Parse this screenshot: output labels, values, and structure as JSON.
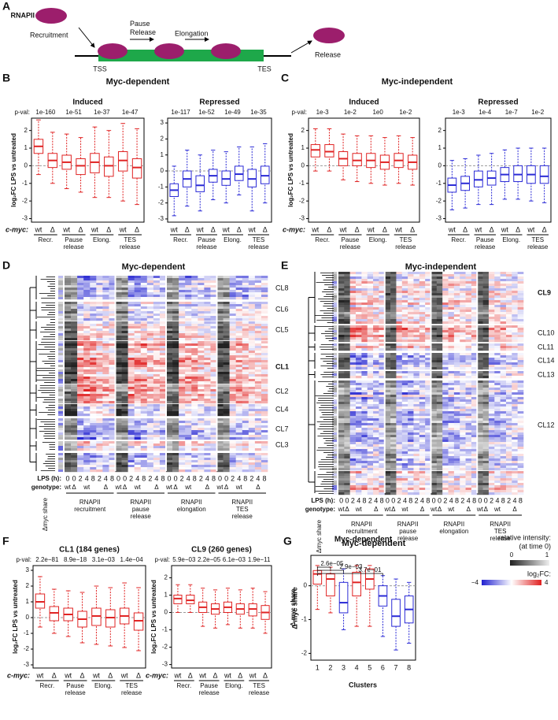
{
  "A": {
    "letter": "A",
    "rnapii": "RNAPII",
    "recruitment": "Recruitment",
    "pause": "Pause Release",
    "elongation": "Elongation",
    "release": "Release",
    "tss": "TSS",
    "tes": "TES"
  },
  "B": {
    "letter": "B",
    "title": "Myc-dependent",
    "plots": [
      {
        "title": "Induced",
        "pval_label": "p-val:",
        "ylabel": "log₂FC LPS vs untreated",
        "cmyc_label": "c-myc:",
        "pvals": [
          "1e-160",
          "1e-51",
          "1e-37",
          "1e-47"
        ],
        "yticks": [
          2,
          1,
          0,
          -1,
          -2,
          -3
        ],
        "ylim": [
          -3.2,
          2.7
        ],
        "color": "#e02424",
        "boxes": [
          [
            -0.5,
            0.7,
            1.1,
            1.5,
            2.6
          ],
          [
            -1,
            -0.1,
            0.3,
            0.7,
            1.9
          ],
          [
            -1.3,
            -0.2,
            0.2,
            0.6,
            1.8
          ],
          [
            -1.5,
            -0.5,
            0,
            0.4,
            1.6
          ],
          [
            -1.8,
            -0.4,
            0.2,
            0.7,
            2.2
          ],
          [
            -1.8,
            -0.6,
            0,
            0.5,
            2
          ],
          [
            -2,
            -0.3,
            0.3,
            0.8,
            2.4
          ],
          [
            -2.2,
            -0.7,
            -0.1,
            0.4,
            2.1
          ]
        ],
        "genotypes": [
          "wt",
          "Δ",
          "wt",
          "Δ",
          "wt",
          "Δ",
          "wt",
          "Δ"
        ],
        "groups": [
          "Recr.",
          "Pause release",
          "Elong.",
          "TES release"
        ]
      },
      {
        "title": "Repressed",
        "pvals": [
          "1e-117",
          "1e-52",
          "1e-49",
          "1e-35"
        ],
        "yticks": [
          3,
          2,
          1,
          0,
          -1,
          -2,
          -3
        ],
        "ylim": [
          -3.2,
          3.3
        ],
        "color": "#2a2ad6",
        "boxes": [
          [
            -2.8,
            -1.6,
            -1.2,
            -0.8,
            0.3
          ],
          [
            -2.2,
            -1,
            -0.5,
            0,
            1.3
          ],
          [
            -2.5,
            -1.3,
            -0.9,
            -0.3,
            1
          ],
          [
            -1.8,
            -0.7,
            -0.3,
            0.1,
            1.3
          ],
          [
            -2,
            -0.9,
            -0.5,
            0,
            1.2
          ],
          [
            -1.5,
            -0.6,
            -0.2,
            0.3,
            1.5
          ],
          [
            -2.5,
            -1,
            -0.5,
            0.1,
            1.5
          ],
          [
            -2,
            -0.8,
            -0.3,
            0.3,
            1.7
          ]
        ],
        "genotypes": [
          "wt",
          "Δ",
          "wt",
          "Δ",
          "wt",
          "Δ",
          "wt",
          "Δ"
        ],
        "groups": [
          "Recr.",
          "Pause release",
          "Elong.",
          "TES release"
        ]
      }
    ]
  },
  "C": {
    "letter": "C",
    "title": "Myc-independent",
    "plots": [
      {
        "title": "Induced",
        "pval_label": "p-val:",
        "ylabel": "log₂FC LPS vs untreated",
        "cmyc_label": "c-myc:",
        "pvals": [
          "1e-3",
          "1e-2",
          "1e0",
          "1e-2"
        ],
        "yticks": [
          2,
          1,
          0,
          -1,
          -2,
          -3
        ],
        "ylim": [
          -3.2,
          2.7
        ],
        "color": "#e02424",
        "boxes": [
          [
            -0.3,
            0.5,
            0.9,
            1.2,
            2.1
          ],
          [
            -0.3,
            0.5,
            0.8,
            1.2,
            2.1
          ],
          [
            -0.8,
            0,
            0.4,
            0.8,
            1.8
          ],
          [
            -0.9,
            0,
            0.3,
            0.7,
            1.7
          ],
          [
            -1,
            -0.1,
            0.3,
            0.7,
            1.7
          ],
          [
            -1.1,
            -0.2,
            0.2,
            0.6,
            1.6
          ],
          [
            -1,
            -0.1,
            0.3,
            0.7,
            1.7
          ],
          [
            -1.1,
            -0.2,
            0.2,
            0.6,
            1.6
          ]
        ],
        "genotypes": [
          "wt",
          "Δ",
          "wt",
          "Δ",
          "wt",
          "Δ",
          "wt",
          "Δ"
        ],
        "groups": [
          "Recr.",
          "Pause release",
          "Elong.",
          "TES release"
        ]
      },
      {
        "title": "Repressed",
        "pvals": [
          "1e-3",
          "1e-4",
          "1e-7",
          "1e-2"
        ],
        "yticks": [
          2,
          1,
          0,
          -1,
          -2,
          -3
        ],
        "ylim": [
          -3.2,
          2.7
        ],
        "color": "#2a2ad6",
        "boxes": [
          [
            -2.5,
            -1.5,
            -1.1,
            -0.7,
            0.3
          ],
          [
            -2.4,
            -1.4,
            -1,
            -0.6,
            0.4
          ],
          [
            -2.2,
            -1.2,
            -0.8,
            -0.3,
            0.6
          ],
          [
            -2.2,
            -1.1,
            -0.7,
            -0.3,
            0.7
          ],
          [
            -1.9,
            -0.9,
            -0.5,
            -0.1,
            0.9
          ],
          [
            -1.9,
            -0.9,
            -0.5,
            0,
            1
          ],
          [
            -2,
            -1,
            -0.5,
            0,
            1
          ],
          [
            -2.1,
            -1,
            -0.6,
            0,
            1
          ]
        ],
        "genotypes": [
          "wt",
          "Δ",
          "wt",
          "Δ",
          "wt",
          "Δ",
          "wt",
          "Δ"
        ],
        "groups": [
          "Recr.",
          "Pause release",
          "Elong.",
          "TES release"
        ]
      }
    ]
  },
  "D": {
    "letter": "D",
    "title": "Myc-dependent",
    "clusters": [
      "CL8",
      "CL6",
      "CL5",
      "CL1",
      "CL2",
      "CL4",
      "CL7",
      "CL3"
    ],
    "lps_label": "LPS (h):",
    "lps": [
      "0",
      "0",
      "2",
      "4",
      "8",
      "2",
      "4",
      "8"
    ],
    "genotype_label": "genotype:",
    "genotype": [
      "wt",
      "Δ",
      "wt",
      "Δ"
    ],
    "share_label": "Δmyc share",
    "groups": [
      "RNAPII recruitment",
      "RNAPII pause release",
      "RNAPII elongation",
      "RNAPII TES release"
    ]
  },
  "E": {
    "letter": "E",
    "title": "Myc-independent",
    "clusters": [
      "CL9",
      "CL10",
      "CL11",
      "CL14",
      "CL13",
      "CL12"
    ],
    "lps_label": "LPS (h):",
    "lps": [
      "0",
      "0",
      "2",
      "4",
      "8",
      "2",
      "4",
      "8"
    ],
    "genotype_label": "genotype:",
    "genotype": [
      "wt",
      "Δ",
      "wt",
      "Δ"
    ],
    "share_label": "Δmyc share",
    "groups": [
      "RNAPII recruitment",
      "RNAPII pause release",
      "RNAPII elongation",
      "RNAPII TES release"
    ]
  },
  "legend": {
    "title": "relative intensity:",
    "subtitle": "(at time 0)",
    "gray_ticks": [
      "0",
      "1"
    ],
    "fc_label": "log₂FC:",
    "fc_ticks": [
      "−4",
      "4"
    ]
  },
  "F": {
    "letter": "F",
    "plots": [
      {
        "title": "CL1 (184 genes)",
        "pval_label": "p-val:",
        "ylabel": "log₂FC LPS vs untreated",
        "cmyc_label": "c-myc:",
        "pvals": [
          "2.2e−81",
          "8.9e−18",
          "3.1e−03",
          "1.4e−04"
        ],
        "yticks": [
          3,
          2,
          1,
          0,
          -1,
          -2,
          -3
        ],
        "ylim": [
          -3.2,
          3.3
        ],
        "color": "#e02424",
        "boxes": [
          [
            -0.6,
            0.6,
            1,
            1.5,
            2.6
          ],
          [
            -1,
            -0.2,
            0.3,
            0.7,
            1.8
          ],
          [
            -1.2,
            -0.2,
            0.2,
            0.6,
            1.7
          ],
          [
            -1.6,
            -0.6,
            -0.1,
            0.4,
            1.6
          ],
          [
            -1.7,
            -0.5,
            0.1,
            0.6,
            2
          ],
          [
            -1.8,
            -0.6,
            0,
            0.5,
            1.9
          ],
          [
            -1.9,
            -0.4,
            0.1,
            0.6,
            2.2
          ],
          [
            -2.1,
            -0.8,
            -0.2,
            0.3,
            1.9
          ]
        ],
        "genotypes": [
          "wt",
          "Δ",
          "wt",
          "Δ",
          "wt",
          "Δ",
          "wt",
          "Δ"
        ],
        "groups": [
          "Recr.",
          "Pause release",
          "Elong.",
          "TES release"
        ]
      },
      {
        "title": "CL9 (260 genes)",
        "pval_label": "p-val:",
        "ylabel": "log₂FC LPS vs untreated",
        "cmyc_label": "c-myc:",
        "pvals": [
          "5.9e−03",
          "2.2e−05",
          "6.1e−03",
          "1.9e−11"
        ],
        "yticks": [
          2,
          1,
          0,
          -1,
          -2,
          -3
        ],
        "ylim": [
          -3.2,
          2.7
        ],
        "color": "#e02424",
        "boxes": [
          [
            0,
            0.5,
            0.8,
            1,
            1.6
          ],
          [
            0,
            0.5,
            0.7,
            1,
            1.6
          ],
          [
            -0.8,
            0,
            0.3,
            0.6,
            1.4
          ],
          [
            -0.9,
            -0.1,
            0.2,
            0.5,
            1.3
          ],
          [
            -0.7,
            0,
            0.3,
            0.6,
            1.4
          ],
          [
            -0.9,
            -0.1,
            0.2,
            0.5,
            1.3
          ],
          [
            -0.9,
            -0.2,
            0.2,
            0.5,
            1.4
          ],
          [
            -1.2,
            -0.4,
            0,
            0.4,
            1.2
          ]
        ],
        "genotypes": [
          "wt",
          "Δ",
          "wt",
          "Δ",
          "wt",
          "Δ",
          "wt",
          "Δ"
        ],
        "groups": [
          "Recr.",
          "Pause release",
          "Elong.",
          "TES release"
        ]
      }
    ]
  },
  "G": {
    "letter": "G",
    "title": "Myc-dependent",
    "ylabel": "Δ myc share",
    "xlabel": "Clusters",
    "categories": [
      "1",
      "2",
      "3",
      "4",
      "5",
      "6",
      "7",
      "8"
    ],
    "colors": [
      "#e02424",
      "#e02424",
      "#2a2ad6",
      "#e02424",
      "#e02424",
      "#2a2ad6",
      "#2a2ad6",
      "#2a2ad6"
    ],
    "boxes": [
      [
        -0.7,
        0.05,
        0.35,
        0.45,
        0.6
      ],
      [
        -0.8,
        -0.3,
        0.2,
        0.35,
        0.55
      ],
      [
        -1.3,
        -0.8,
        -0.5,
        0.1,
        0.5
      ],
      [
        -1.2,
        -0.3,
        0.1,
        0.4,
        0.6
      ],
      [
        -1.2,
        -0.1,
        0.2,
        0.5,
        0.6
      ],
      [
        -1.5,
        -0.6,
        -0.3,
        0,
        0.3
      ],
      [
        -1.9,
        -1.2,
        -0.9,
        -0.4,
        0.2
      ],
      [
        -1.7,
        -1.1,
        -0.7,
        -0.3,
        0.1
      ]
    ],
    "pvals": [
      "2.6e−05",
      "2.9e−03",
      "3.7e−01"
    ],
    "yticks": [
      0,
      -1,
      -2
    ],
    "ylim": [
      -2.2,
      0.9
    ]
  }
}
